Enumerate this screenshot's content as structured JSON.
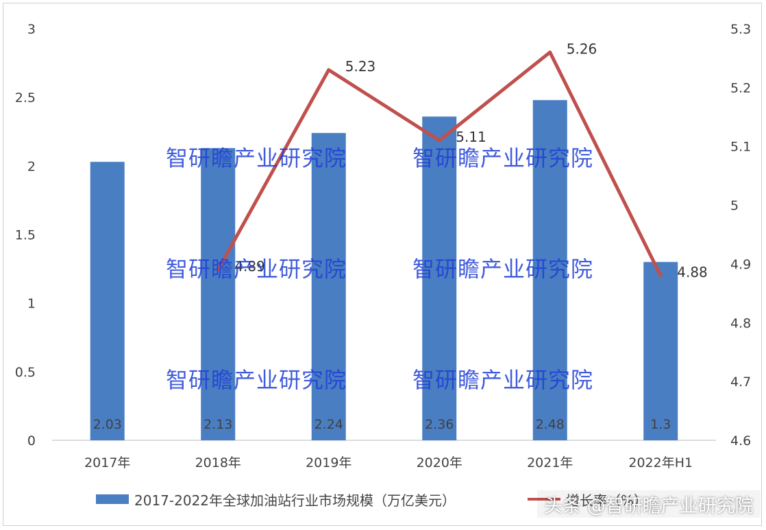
{
  "chart_data": {
    "type": "bar+line",
    "categories": [
      "2017年",
      "2018年",
      "2019年",
      "2020年",
      "2021年",
      "2022年H1"
    ],
    "series": [
      {
        "name": "2017-2022年全球加油站行业市场规模（万亿美元）",
        "type": "bar",
        "axis": "left",
        "values": [
          2.03,
          2.13,
          2.24,
          2.36,
          2.48,
          1.3
        ],
        "labels": [
          "2.03",
          "2.13",
          "2.24",
          "2.36",
          "2.48",
          "1.3"
        ]
      },
      {
        "name": "增长率（%）",
        "type": "line",
        "axis": "right",
        "values": [
          null,
          4.89,
          5.23,
          5.11,
          5.26,
          4.88
        ],
        "labels": [
          "",
          "4.89",
          "5.23",
          "5.11",
          "5.26",
          "4.88"
        ]
      }
    ],
    "left_axis": {
      "ylim": [
        0,
        3
      ],
      "ticks": [
        "0",
        "0.5",
        "1",
        "1.5",
        "2",
        "2.5",
        "3"
      ]
    },
    "right_axis": {
      "ylim": [
        4.6,
        5.3
      ],
      "ticks": [
        "4.6",
        "4.7",
        "4.8",
        "4.9",
        "5",
        "5.1",
        "5.2",
        "5.3"
      ]
    },
    "grid": false,
    "legend": "bottom",
    "colors": {
      "bar": "#4a7ec2",
      "line": "#c0504d",
      "axis_text": "#404040"
    }
  },
  "legend": {
    "bar_label": "2017-2022年全球加油站行业市场规模（万亿美元）",
    "line_label": "增长率（%）"
  },
  "watermark": "智研瞻产业研究院",
  "credit": "头条 @智研瞻产业研究院"
}
